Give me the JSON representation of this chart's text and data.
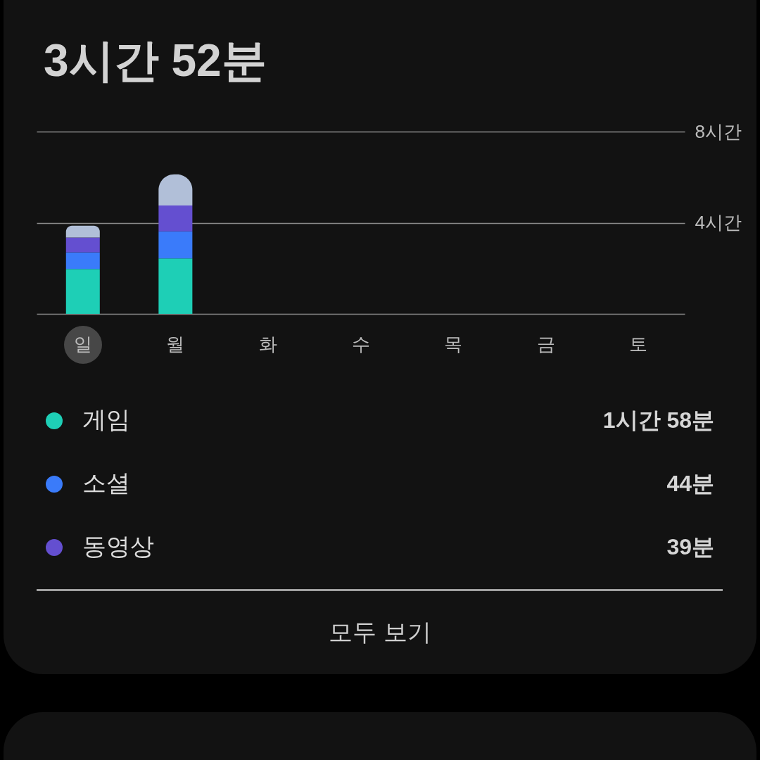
{
  "chart_data": {
    "type": "bar",
    "title": "3시간 52분",
    "categories": [
      "일",
      "월",
      "화",
      "수",
      "목",
      "금",
      "토"
    ],
    "stacked": true,
    "series": [
      {
        "name": "게임",
        "color": "#1ecfb6",
        "values": [
          1.97,
          2.43,
          null,
          null,
          null,
          null,
          null
        ]
      },
      {
        "name": "소셜",
        "color": "#3a7bfa",
        "values": [
          0.73,
          1.19,
          null,
          null,
          null,
          null,
          null
        ]
      },
      {
        "name": "동영상",
        "color": "#644fd0",
        "values": [
          0.65,
          1.14,
          null,
          null,
          null,
          null,
          null
        ]
      },
      {
        "color": "#b1bfd8",
        "values": [
          0.52,
          1.36,
          null,
          null,
          null,
          null,
          null
        ]
      }
    ],
    "ylim": [
      0,
      8
    ],
    "yticks": [
      {
        "value": 4,
        "label": "4시간"
      },
      {
        "value": 8,
        "label": "8시간"
      }
    ],
    "grid": "y",
    "legend": "bottom",
    "annotations": [
      "1시간 58분",
      "44분",
      "39분",
      "모두 보기"
    ]
  }
}
